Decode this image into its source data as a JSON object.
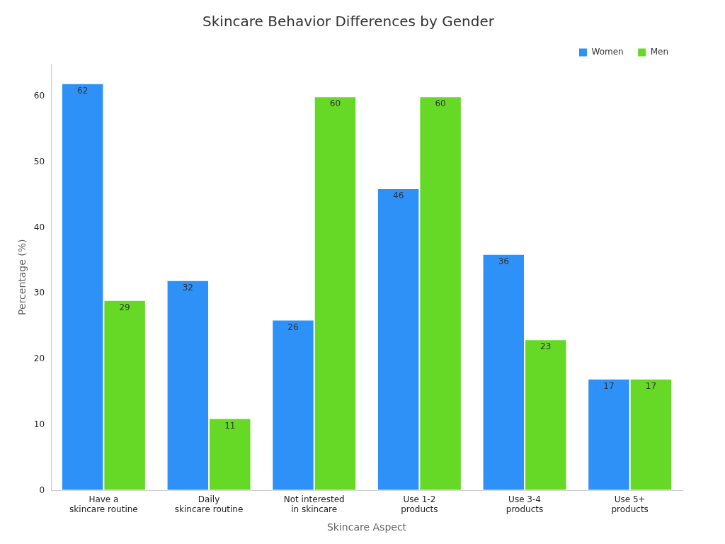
{
  "chart_data": {
    "type": "bar",
    "title": "Skincare Behavior Differences by Gender",
    "xlabel": "Skincare Aspect",
    "ylabel": "Percentage (%)",
    "categories": [
      "Have a\nskincare routine",
      "Daily\nskincare routine",
      "Not interested\nin skincare",
      "Use 1-2\nproducts",
      "Use 3-4\nproducts",
      "Use 5+\nproducts"
    ],
    "series": [
      {
        "name": "Women",
        "color": "#2e91f7",
        "values": [
          62,
          32,
          26,
          46,
          36,
          17
        ]
      },
      {
        "name": "Men",
        "color": "#66d926",
        "values": [
          29,
          11,
          60,
          60,
          23,
          17
        ]
      }
    ],
    "ylim": [
      0,
      65
    ],
    "yticks": [
      0,
      10,
      20,
      30,
      40,
      50,
      60
    ],
    "grid": false,
    "legend": "top right",
    "data_labels": true
  }
}
